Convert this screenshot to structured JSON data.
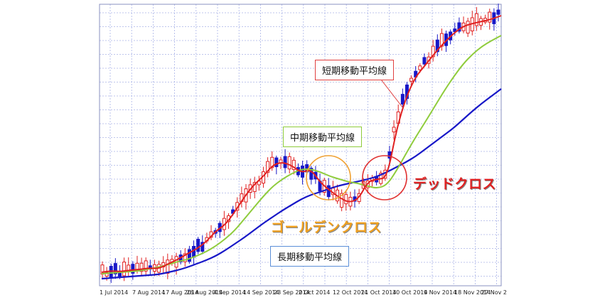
{
  "chart_data": {
    "type": "line",
    "x_tick_labels": [
      "1 Jul 2014",
      "7 Aug 2014",
      "17 Aug 2014",
      "26 Aug 2014",
      "4 Sep 2014",
      "14 Sep 2014",
      "23 Sep 2014",
      "2 Oct 2014",
      "12 Oct 2014",
      "21 Oct 2014",
      "30 Oct 2014",
      "9 Nov 2014",
      "18 Nov 2014",
      "27 Nov 2"
    ],
    "grid": true,
    "series": [
      {
        "name": "短期移動平均線",
        "color": "#e02020",
        "values": [
          383,
          381,
          382,
          380,
          379,
          377,
          378,
          371,
          365,
          357,
          350,
          340,
          325,
          316,
          298,
          277,
          260,
          248,
          232,
          228,
          233,
          243,
          238,
          257,
          268,
          278,
          285,
          280,
          255,
          252,
          250,
          182,
          137,
          108,
          92,
          75,
          60,
          47,
          37,
          33,
          30,
          27,
          22
        ]
      },
      {
        "name": "中期移動平均線",
        "color": "#8fcc3c",
        "values": [
          385,
          384,
          383,
          382,
          381,
          378,
          376,
          372,
          368,
          365,
          360,
          354,
          346,
          336,
          324,
          308,
          292,
          276,
          262,
          252,
          244,
          238,
          238,
          242,
          248,
          252,
          256,
          258,
          262,
          265,
          260,
          240,
          216,
          193,
          172,
          150,
          128,
          108,
          90,
          76,
          65,
          57,
          50
        ]
      },
      {
        "name": "長期移動平均線",
        "color": "#1818c8",
        "values": [
          392,
          391,
          390,
          389,
          388,
          387,
          386,
          383,
          380,
          376,
          371,
          366,
          360,
          352,
          343,
          334,
          324,
          314,
          305,
          296,
          288,
          280,
          274,
          270,
          265,
          261,
          258,
          255,
          252,
          248,
          242,
          235,
          228,
          220,
          210,
          200,
          190,
          180,
          168,
          156,
          145,
          135,
          125
        ]
      }
    ],
    "annotations": {
      "short_ma": "短期移動平均線",
      "mid_ma": "中期移動平均線",
      "long_ma": "長期移動平均線",
      "golden_cross": "ゴールデンクロス",
      "dead_cross": "デッドクロス"
    },
    "colors": {
      "grid": "#aab4e8",
      "candle_up": "#e02020",
      "candle_down": "#1818c8",
      "golden_circle": "#f0a030",
      "dead_circle": "#e03030",
      "golden_text": "#f0a020",
      "dead_text": "#e02020"
    }
  }
}
